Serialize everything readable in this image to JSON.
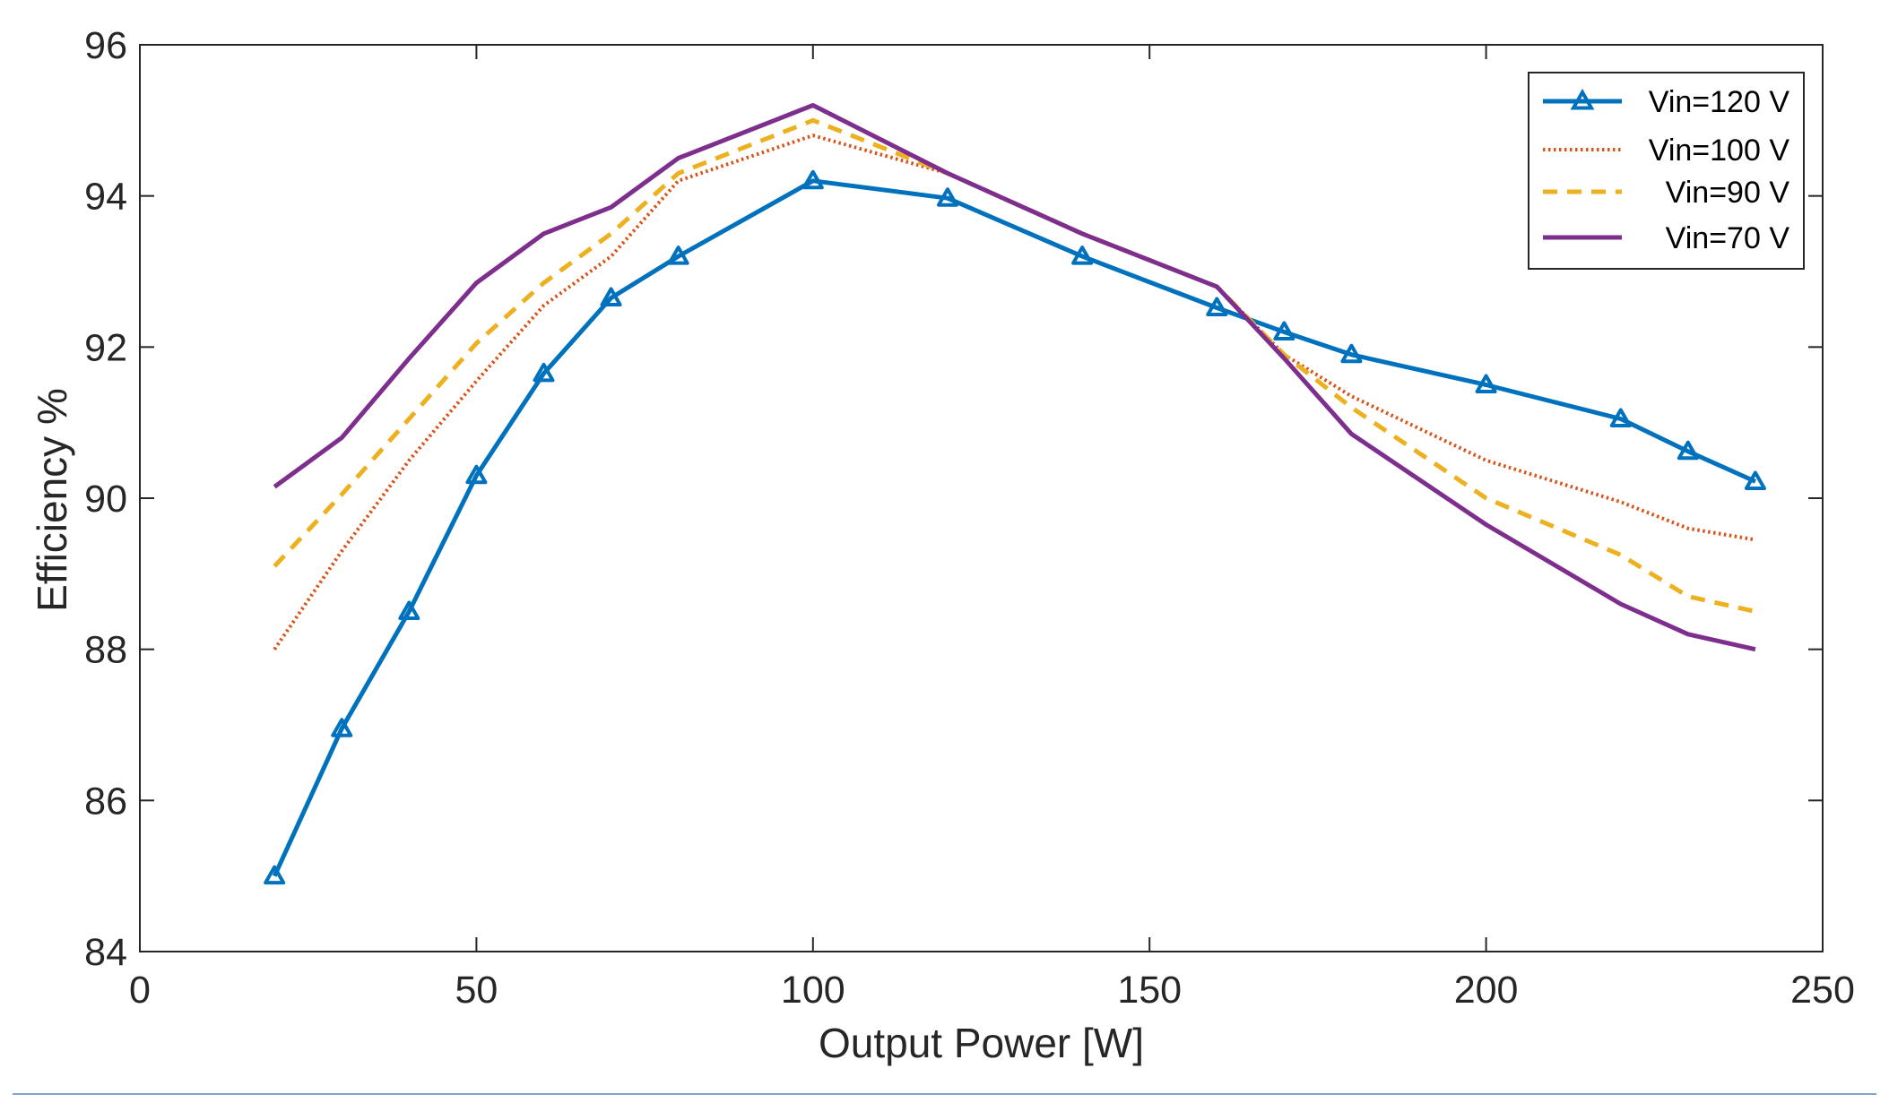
{
  "chart_data": {
    "type": "line",
    "title": "",
    "xlabel": "Output Power [W]",
    "ylabel": "Efficiency %",
    "xlim": [
      0,
      250
    ],
    "ylim": [
      84,
      96
    ],
    "xticks": [
      0,
      50,
      100,
      150,
      200,
      250
    ],
    "yticks": [
      84,
      86,
      88,
      90,
      92,
      94,
      96
    ],
    "grid": false,
    "legend_position": "top-right",
    "series": [
      {
        "name": "Vin=120 V",
        "color": "#0072BD",
        "style": "solid",
        "marker": "triangle",
        "x": [
          20,
          30,
          40,
          50,
          60,
          70,
          80,
          100,
          120,
          140,
          160,
          170,
          180,
          200,
          220,
          230,
          240
        ],
        "y": [
          85.0,
          86.95,
          88.5,
          90.3,
          91.65,
          92.65,
          93.2,
          94.2,
          93.97,
          93.2,
          92.52,
          92.2,
          91.9,
          91.5,
          91.05,
          90.62,
          90.22
        ]
      },
      {
        "name": "Vin=100 V",
        "color": "#D95319",
        "style": "dotted",
        "marker": "none",
        "x": [
          20,
          30,
          40,
          50,
          60,
          70,
          80,
          100,
          120,
          140,
          160,
          170,
          180,
          200,
          220,
          230,
          240
        ],
        "y": [
          88.0,
          89.3,
          90.5,
          91.55,
          92.55,
          93.2,
          94.2,
          94.8,
          94.3,
          93.5,
          92.8,
          91.9,
          91.35,
          90.5,
          89.95,
          89.6,
          89.45
        ]
      },
      {
        "name": "Vin=90 V",
        "color": "#EDB120",
        "style": "dashed",
        "marker": "none",
        "x": [
          20,
          30,
          40,
          50,
          60,
          70,
          80,
          100,
          120,
          140,
          160,
          170,
          180,
          200,
          220,
          230,
          240
        ],
        "y": [
          89.1,
          90.05,
          91.05,
          92.05,
          92.85,
          93.5,
          94.3,
          95.0,
          94.3,
          93.5,
          92.8,
          91.9,
          91.2,
          90.0,
          89.25,
          88.7,
          88.5
        ]
      },
      {
        "name": "Vin=70 V",
        "color": "#7E2F8E",
        "style": "solid",
        "marker": "none",
        "x": [
          20,
          30,
          40,
          50,
          60,
          70,
          80,
          100,
          120,
          140,
          160,
          170,
          180,
          200,
          220,
          230,
          240
        ],
        "y": [
          90.15,
          90.8,
          91.85,
          92.85,
          93.5,
          93.85,
          94.5,
          95.2,
          94.3,
          93.5,
          92.8,
          91.85,
          90.85,
          89.65,
          88.6,
          88.2,
          88.0
        ]
      }
    ]
  }
}
